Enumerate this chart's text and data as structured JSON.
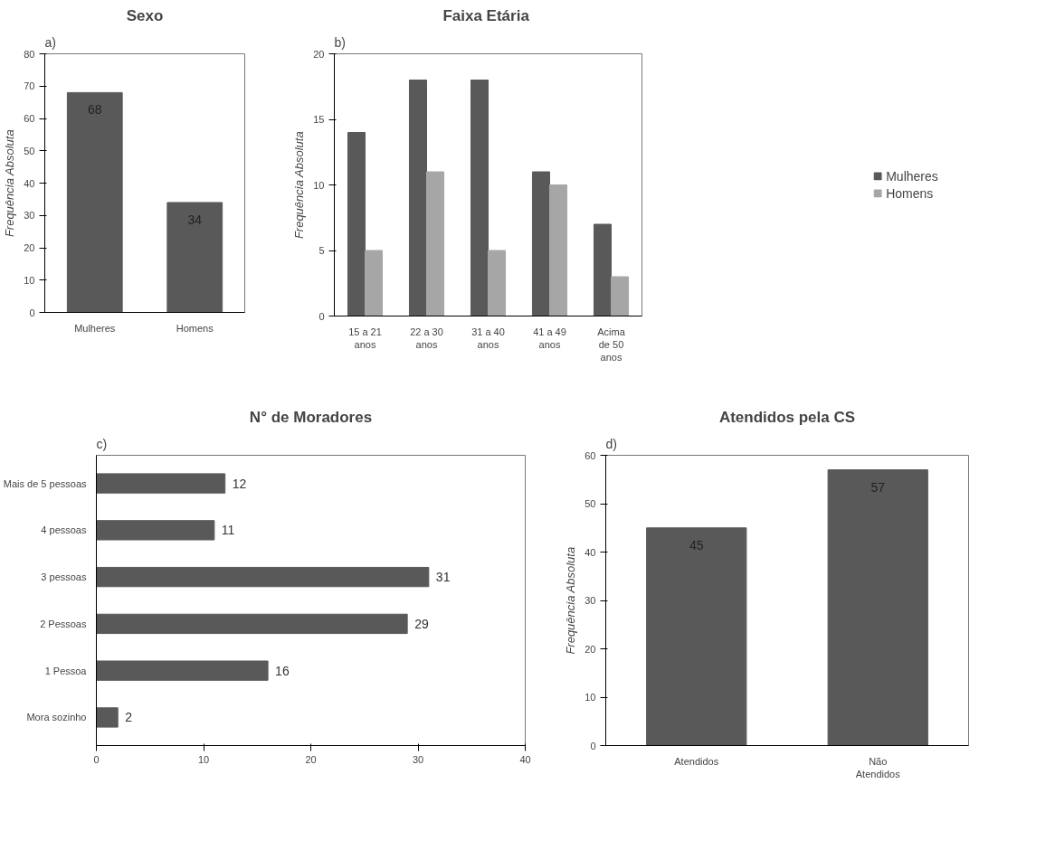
{
  "chart_data": [
    {
      "type": "bar",
      "title": "Sexo",
      "ylabel": "Frequência Absoluta",
      "annotations": [
        "a)"
      ],
      "categories": [
        "Mulheres",
        "Homens"
      ],
      "values": [
        68,
        34
      ],
      "color": "#595959",
      "ylim": [
        0,
        80
      ],
      "yticks": [
        0,
        10,
        20,
        30,
        40,
        50,
        60,
        70,
        80
      ],
      "data_labels": true,
      "grid": false
    },
    {
      "type": "bar",
      "title": "Faixa  Etária",
      "ylabel": "Frequência Absoluta",
      "annotations": [
        "b)"
      ],
      "categories": [
        "15 a 21 anos",
        "22 a 30 anos",
        "31 a 40 anos",
        "41 a 49 anos",
        "Acima de 50 anos"
      ],
      "series": [
        {
          "name": "Mulheres",
          "color": "#595959",
          "values": [
            14,
            18,
            18,
            11,
            7
          ]
        },
        {
          "name": "Homens",
          "color": "#a6a6a6",
          "values": [
            5,
            11,
            5,
            10,
            3
          ]
        }
      ],
      "ylim": [
        0,
        20
      ],
      "yticks": [
        0,
        5,
        10,
        15,
        20
      ],
      "legend": "right",
      "grid": false
    },
    {
      "type": "bar",
      "orientation": "horizontal",
      "title": "N° de Moradores",
      "annotations": [
        "c)"
      ],
      "categories": [
        "Mais de 5 pessoas",
        "4 pessoas",
        "3 pessoas",
        "2 Pessoas",
        "1 Pessoa",
        "Mora sozinho"
      ],
      "values": [
        12,
        11,
        31,
        29,
        16,
        2
      ],
      "color": "#595959",
      "xlim": [
        0,
        40
      ],
      "xticks": [
        0,
        10,
        20,
        30,
        40
      ],
      "data_labels": true,
      "grid": false
    },
    {
      "type": "bar",
      "title": "Atendidos pela CS",
      "ylabel": "Frequência Absoluta",
      "annotations": [
        "d)"
      ],
      "categories": [
        "Atendidos",
        "Não Atendidos"
      ],
      "values": [
        45,
        57
      ],
      "color": "#595959",
      "ylim": [
        0,
        60
      ],
      "yticks": [
        0,
        10,
        20,
        30,
        40,
        50,
        60
      ],
      "data_labels": true,
      "grid": false
    }
  ]
}
